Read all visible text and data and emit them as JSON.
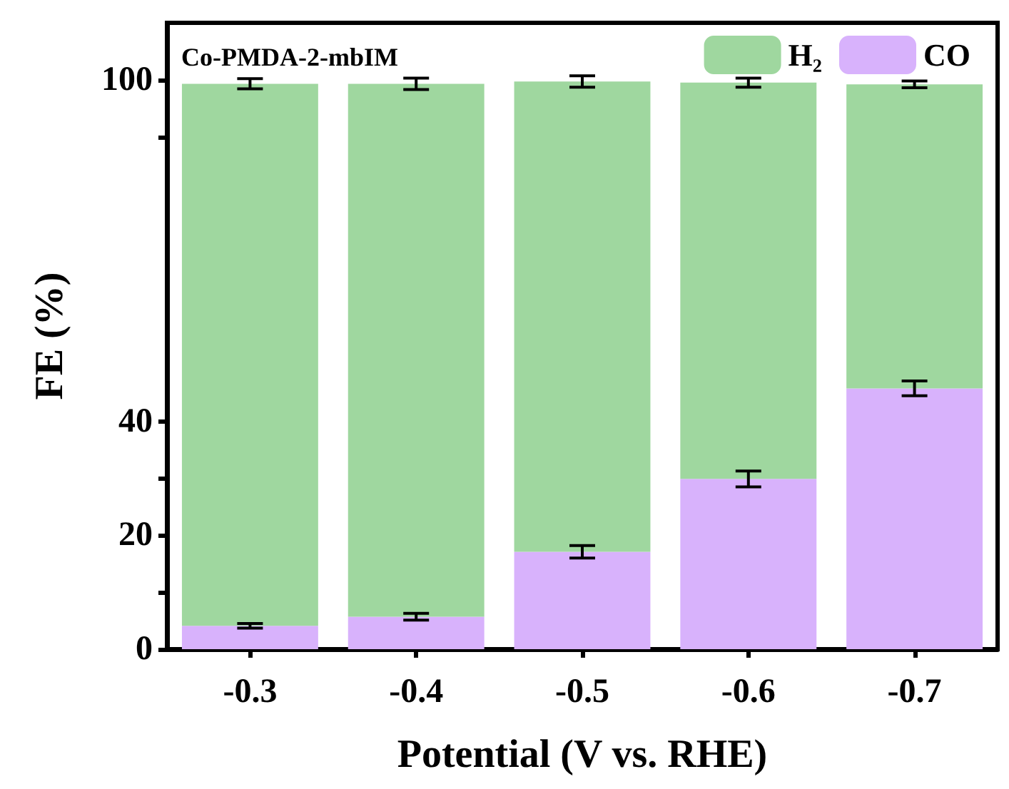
{
  "chart_data": {
    "type": "bar",
    "title": "Co-PMDA-2-mbIM",
    "xlabel": "Potential (V vs. RHE)",
    "ylabel": "FE (%)",
    "categories": [
      "-0.3",
      "-0.4",
      "-0.5",
      "-0.6",
      "-0.7"
    ],
    "stacked": true,
    "series": [
      {
        "name": "CO",
        "color": "#d8b2fc",
        "values": [
          4.1,
          5.7,
          17.1,
          29.9,
          45.8
        ],
        "errors": [
          0.4,
          0.6,
          1.1,
          1.4,
          1.3
        ]
      },
      {
        "name": "H₂",
        "color": "#9fd79f",
        "values": [
          95.2,
          93.6,
          82.6,
          69.6,
          53.4
        ],
        "errors": [
          0.9,
          1.0,
          1.0,
          0.8,
          0.6
        ]
      }
    ],
    "ylim": [
      0,
      110
    ],
    "yticks": [
      0,
      {
        "value": 10,
        "label": null
      },
      20,
      {
        "value": 30,
        "label": null
      },
      40,
      {
        "value": 90,
        "label": null
      },
      100
    ],
    "legend": "top right",
    "grid": false
  }
}
